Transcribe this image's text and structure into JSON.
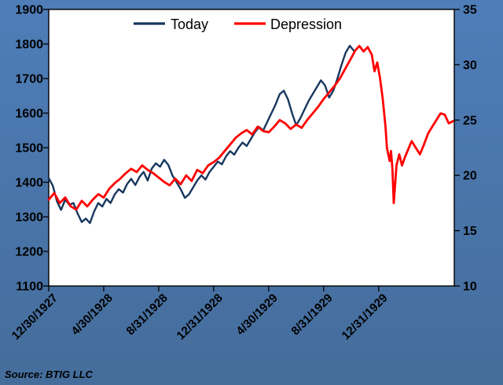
{
  "source_label": "Source: BTIG LLC",
  "colors": {
    "background": "#4e7db8",
    "plot_background": "#ffffff",
    "axis": "#000000",
    "today_line": "#17375e",
    "depression_line": "#ff0000"
  },
  "chart_data": {
    "type": "line",
    "title": "",
    "x_unit": "months since 12/30/1927",
    "x_range": [
      0,
      29.5
    ],
    "x_tick_positions": [
      0,
      4,
      8,
      12,
      16,
      20,
      24
    ],
    "x_tick_labels": [
      "12/30/1927",
      "4/30/1928",
      "8/31/1928",
      "12/31/1928",
      "4/30/1929",
      "8/31/1929",
      "12/31/1929"
    ],
    "left_axis": {
      "min": 1100,
      "max": 1900,
      "step": 100
    },
    "right_axis": {
      "min": 10,
      "max": 35,
      "ticks": [
        10,
        15,
        20,
        25,
        30,
        35
      ]
    },
    "grid": false,
    "legend_position": "top-center",
    "legend": [
      {
        "label": "Today"
      },
      {
        "label": "Depression"
      }
    ],
    "series": [
      {
        "name": "Today",
        "axis": "left",
        "color": "#17375e",
        "width": 2.4,
        "points": [
          [
            0,
            1412
          ],
          [
            0.3,
            1390
          ],
          [
            0.6,
            1345
          ],
          [
            0.9,
            1320
          ],
          [
            1.2,
            1350
          ],
          [
            1.5,
            1335
          ],
          [
            1.8,
            1340
          ],
          [
            2.1,
            1310
          ],
          [
            2.4,
            1285
          ],
          [
            2.7,
            1295
          ],
          [
            3.0,
            1282
          ],
          [
            3.3,
            1315
          ],
          [
            3.6,
            1340
          ],
          [
            3.9,
            1330
          ],
          [
            4.2,
            1352
          ],
          [
            4.5,
            1340
          ],
          [
            4.8,
            1365
          ],
          [
            5.1,
            1380
          ],
          [
            5.4,
            1370
          ],
          [
            5.7,
            1395
          ],
          [
            6.0,
            1410
          ],
          [
            6.3,
            1392
          ],
          [
            6.6,
            1415
          ],
          [
            6.9,
            1430
          ],
          [
            7.2,
            1405
          ],
          [
            7.5,
            1440
          ],
          [
            7.8,
            1455
          ],
          [
            8.1,
            1445
          ],
          [
            8.4,
            1465
          ],
          [
            8.7,
            1450
          ],
          [
            9.0,
            1420
          ],
          [
            9.3,
            1400
          ],
          [
            9.6,
            1380
          ],
          [
            9.9,
            1355
          ],
          [
            10.2,
            1365
          ],
          [
            10.5,
            1385
          ],
          [
            10.8,
            1405
          ],
          [
            11.1,
            1420
          ],
          [
            11.4,
            1408
          ],
          [
            11.7,
            1430
          ],
          [
            12.0,
            1445
          ],
          [
            12.3,
            1460
          ],
          [
            12.6,
            1452
          ],
          [
            12.9,
            1475
          ],
          [
            13.2,
            1490
          ],
          [
            13.5,
            1480
          ],
          [
            13.8,
            1500
          ],
          [
            14.1,
            1515
          ],
          [
            14.4,
            1505
          ],
          [
            14.7,
            1525
          ],
          [
            15.0,
            1545
          ],
          [
            15.3,
            1560
          ],
          [
            15.6,
            1550
          ],
          [
            15.9,
            1575
          ],
          [
            16.2,
            1600
          ],
          [
            16.5,
            1625
          ],
          [
            16.8,
            1655
          ],
          [
            17.1,
            1665
          ],
          [
            17.4,
            1640
          ],
          [
            17.7,
            1600
          ],
          [
            18.0,
            1565
          ],
          [
            18.3,
            1585
          ],
          [
            18.6,
            1610
          ],
          [
            18.9,
            1635
          ],
          [
            19.2,
            1655
          ],
          [
            19.5,
            1675
          ],
          [
            19.8,
            1695
          ],
          [
            20.1,
            1680
          ],
          [
            20.4,
            1645
          ],
          [
            20.7,
            1665
          ],
          [
            21.0,
            1700
          ],
          [
            21.3,
            1740
          ],
          [
            21.6,
            1775
          ],
          [
            21.9,
            1795
          ],
          [
            22.2,
            1780
          ]
        ]
      },
      {
        "name": "Depression",
        "axis": "right",
        "color": "#ff0000",
        "width": 2.8,
        "points": [
          [
            0,
            17.8
          ],
          [
            0.4,
            18.4
          ],
          [
            0.8,
            17.5
          ],
          [
            1.2,
            18.0
          ],
          [
            1.6,
            17.2
          ],
          [
            2.0,
            16.9
          ],
          [
            2.4,
            17.7
          ],
          [
            2.8,
            17.2
          ],
          [
            3.2,
            17.8
          ],
          [
            3.6,
            18.3
          ],
          [
            4.0,
            18.0
          ],
          [
            4.4,
            18.8
          ],
          [
            4.8,
            19.3
          ],
          [
            5.2,
            19.7
          ],
          [
            5.6,
            20.2
          ],
          [
            6.0,
            20.6
          ],
          [
            6.4,
            20.3
          ],
          [
            6.8,
            20.9
          ],
          [
            7.2,
            20.5
          ],
          [
            7.6,
            20.2
          ],
          [
            8.0,
            19.8
          ],
          [
            8.4,
            19.4
          ],
          [
            8.8,
            19.1
          ],
          [
            9.2,
            19.7
          ],
          [
            9.6,
            19.2
          ],
          [
            10.0,
            20.0
          ],
          [
            10.4,
            19.5
          ],
          [
            10.8,
            20.5
          ],
          [
            11.2,
            20.2
          ],
          [
            11.6,
            20.9
          ],
          [
            12.0,
            21.2
          ],
          [
            12.4,
            21.6
          ],
          [
            12.8,
            22.2
          ],
          [
            13.2,
            22.8
          ],
          [
            13.6,
            23.4
          ],
          [
            14.0,
            23.8
          ],
          [
            14.4,
            24.1
          ],
          [
            14.8,
            23.7
          ],
          [
            15.2,
            24.4
          ],
          [
            15.6,
            24.0
          ],
          [
            16.0,
            23.9
          ],
          [
            16.4,
            24.4
          ],
          [
            16.8,
            25.0
          ],
          [
            17.2,
            24.7
          ],
          [
            17.6,
            24.2
          ],
          [
            18.0,
            24.6
          ],
          [
            18.4,
            24.3
          ],
          [
            18.8,
            25.0
          ],
          [
            19.2,
            25.6
          ],
          [
            19.6,
            26.2
          ],
          [
            20.0,
            26.9
          ],
          [
            20.4,
            27.5
          ],
          [
            20.8,
            28.1
          ],
          [
            21.2,
            28.8
          ],
          [
            21.6,
            29.7
          ],
          [
            22.0,
            30.6
          ],
          [
            22.3,
            31.3
          ],
          [
            22.6,
            31.7
          ],
          [
            22.9,
            31.2
          ],
          [
            23.2,
            31.6
          ],
          [
            23.5,
            30.9
          ],
          [
            23.7,
            29.4
          ],
          [
            23.9,
            30.2
          ],
          [
            24.1,
            28.8
          ],
          [
            24.3,
            26.9
          ],
          [
            24.5,
            24.4
          ],
          [
            24.6,
            22.5
          ],
          [
            24.8,
            21.3
          ],
          [
            24.9,
            22.2
          ],
          [
            25.0,
            20.6
          ],
          [
            25.1,
            17.5
          ],
          [
            25.3,
            20.9
          ],
          [
            25.5,
            21.9
          ],
          [
            25.7,
            20.9
          ],
          [
            25.9,
            21.6
          ],
          [
            26.1,
            22.2
          ],
          [
            26.4,
            23.1
          ],
          [
            26.7,
            22.5
          ],
          [
            27.0,
            21.9
          ],
          [
            27.3,
            22.8
          ],
          [
            27.6,
            23.8
          ],
          [
            27.9,
            24.4
          ],
          [
            28.2,
            25.0
          ],
          [
            28.5,
            25.6
          ],
          [
            28.8,
            25.5
          ],
          [
            29.1,
            24.7
          ],
          [
            29.4,
            24.9
          ]
        ]
      }
    ]
  }
}
